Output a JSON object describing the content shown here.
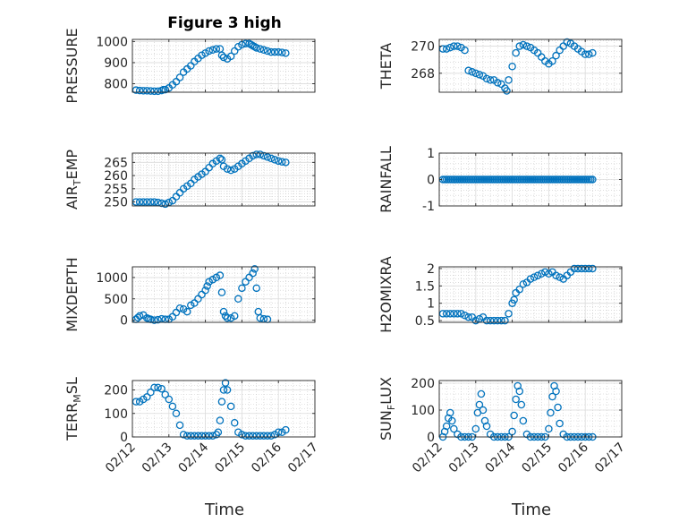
{
  "figure": {
    "title": "Figure 3 high",
    "xlabel": "Time",
    "marker_color": "#0072BD"
  },
  "chart_data": [
    {
      "type": "scatter",
      "ylabel": "PRESSURE",
      "yticks": [
        "800",
        "900",
        "1000"
      ],
      "ylim": [
        760,
        1010
      ],
      "xticks": [],
      "xlim": [
        0,
        5
      ],
      "x": [
        0.1,
        0.2,
        0.3,
        0.4,
        0.5,
        0.6,
        0.7,
        0.8,
        0.85,
        0.9,
        1.0,
        1.1,
        1.2,
        1.3,
        1.4,
        1.5,
        1.6,
        1.7,
        1.8,
        1.9,
        2.0,
        2.1,
        2.2,
        2.3,
        2.4,
        2.45,
        2.5,
        2.6,
        2.7,
        2.8,
        2.9,
        3.0,
        3.1,
        3.2,
        3.25,
        3.3,
        3.35,
        3.4,
        3.5,
        3.6,
        3.7,
        3.8,
        3.9,
        4.0,
        4.1,
        4.2
      ],
      "values": [
        770,
        768,
        767,
        767,
        766,
        765,
        765,
        768,
        772,
        772,
        780,
        795,
        810,
        830,
        855,
        870,
        885,
        905,
        920,
        935,
        945,
        955,
        960,
        965,
        965,
        935,
        925,
        918,
        930,
        955,
        975,
        985,
        990,
        990,
        985,
        980,
        975,
        970,
        965,
        960,
        955,
        950,
        950,
        950,
        948,
        945
      ]
    },
    {
      "type": "scatter",
      "ylabel": "THETA",
      "yticks": [
        "268",
        "270"
      ],
      "ylim": [
        266.6,
        270.5
      ],
      "xticks": [],
      "xlim": [
        0,
        5
      ],
      "x": [
        0.1,
        0.2,
        0.3,
        0.4,
        0.5,
        0.6,
        0.7,
        0.8,
        0.9,
        1.0,
        1.1,
        1.2,
        1.3,
        1.4,
        1.5,
        1.6,
        1.7,
        1.8,
        1.85,
        1.9,
        2.0,
        2.1,
        2.2,
        2.3,
        2.4,
        2.5,
        2.6,
        2.7,
        2.8,
        2.9,
        3.0,
        3.1,
        3.2,
        3.3,
        3.4,
        3.5,
        3.6,
        3.7,
        3.8,
        3.9,
        4.0,
        4.1,
        4.2
      ],
      "values": [
        269.8,
        269.8,
        269.9,
        270.0,
        270.0,
        269.9,
        269.7,
        268.2,
        268.1,
        268.0,
        267.9,
        267.8,
        267.6,
        267.5,
        267.5,
        267.3,
        267.2,
        266.9,
        266.7,
        267.5,
        268.5,
        269.5,
        270.0,
        270.1,
        270.0,
        269.9,
        269.7,
        269.5,
        269.2,
        268.9,
        268.7,
        268.9,
        269.3,
        269.7,
        270.0,
        270.3,
        270.2,
        270.0,
        269.8,
        269.6,
        269.4,
        269.4,
        269.5
      ]
    },
    {
      "type": "scatter",
      "ylabel": "AIR_TEMP",
      "yticks": [
        "250",
        "255",
        "260",
        "265"
      ],
      "ylim": [
        248.5,
        268.5
      ],
      "xticks": [],
      "xlim": [
        0,
        5
      ],
      "x": [
        0.1,
        0.2,
        0.3,
        0.4,
        0.5,
        0.6,
        0.7,
        0.8,
        0.9,
        1.0,
        1.1,
        1.2,
        1.3,
        1.4,
        1.5,
        1.6,
        1.7,
        1.8,
        1.9,
        2.0,
        2.1,
        2.2,
        2.3,
        2.4,
        2.45,
        2.5,
        2.6,
        2.7,
        2.8,
        2.9,
        3.0,
        3.1,
        3.2,
        3.3,
        3.4,
        3.5,
        3.6,
        3.7,
        3.8,
        3.9,
        4.0,
        4.1,
        4.2
      ],
      "values": [
        250.0,
        250.0,
        250.0,
        250.0,
        250.0,
        250.0,
        249.8,
        249.5,
        249.2,
        249.8,
        250.5,
        252.0,
        253.5,
        255.0,
        256.0,
        257.0,
        258.5,
        259.5,
        260.5,
        261.5,
        263.0,
        264.5,
        265.5,
        266.5,
        266.0,
        263.5,
        262.5,
        262.0,
        262.5,
        263.5,
        264.5,
        265.5,
        266.5,
        267.5,
        268.0,
        268.0,
        267.5,
        267.0,
        266.5,
        266.0,
        265.5,
        265.2,
        265.0
      ]
    },
    {
      "type": "scatter",
      "ylabel": "RAINFALL",
      "yticks": [
        "-1",
        "0",
        "1"
      ],
      "ylim": [
        -1,
        1
      ],
      "xticks": [],
      "xlim": [
        0,
        5
      ],
      "x_start": 0.1,
      "x_end": 4.2,
      "constant_value": 0
    },
    {
      "type": "scatter",
      "ylabel": "MIXDEPTH",
      "yticks": [
        "0",
        "500",
        "1000"
      ],
      "ylim": [
        -50,
        1250
      ],
      "xticks": [],
      "xlim": [
        0,
        5
      ],
      "x": [
        0.1,
        0.15,
        0.2,
        0.3,
        0.4,
        0.45,
        0.5,
        0.6,
        0.7,
        0.8,
        0.9,
        1.0,
        1.1,
        1.2,
        1.3,
        1.4,
        1.5,
        1.6,
        1.7,
        1.8,
        1.9,
        2.0,
        2.05,
        2.1,
        2.2,
        2.3,
        2.4,
        2.45,
        2.5,
        2.55,
        2.6,
        2.7,
        2.8,
        2.9,
        3.0,
        3.1,
        3.2,
        3.3,
        3.35,
        3.4,
        3.45,
        3.5,
        3.6,
        3.7
      ],
      "values": [
        20,
        60,
        100,
        120,
        50,
        30,
        20,
        0,
        10,
        30,
        20,
        20,
        80,
        180,
        280,
        260,
        200,
        350,
        400,
        500,
        600,
        700,
        800,
        900,
        950,
        1000,
        1050,
        650,
        200,
        100,
        50,
        50,
        100,
        500,
        750,
        900,
        1000,
        1100,
        1200,
        750,
        200,
        50,
        30,
        20
      ]
    },
    {
      "type": "scatter",
      "ylabel": "H2OMIXRA",
      "yticks": [
        "0.5",
        "1",
        "1.5",
        "2"
      ],
      "ylim": [
        0.45,
        2.05
      ],
      "xticks": [],
      "xlim": [
        0,
        5
      ],
      "x": [
        0.1,
        0.2,
        0.3,
        0.4,
        0.5,
        0.6,
        0.7,
        0.8,
        0.9,
        1.0,
        1.1,
        1.2,
        1.3,
        1.4,
        1.5,
        1.6,
        1.7,
        1.8,
        1.9,
        2.0,
        2.05,
        2.1,
        2.2,
        2.3,
        2.4,
        2.5,
        2.6,
        2.7,
        2.8,
        2.9,
        3.0,
        3.1,
        3.2,
        3.3,
        3.4,
        3.5,
        3.6,
        3.7,
        3.8,
        3.9,
        4.0,
        4.1,
        4.2
      ],
      "values": [
        0.7,
        0.7,
        0.7,
        0.7,
        0.7,
        0.7,
        0.65,
        0.6,
        0.6,
        0.5,
        0.55,
        0.6,
        0.5,
        0.5,
        0.5,
        0.5,
        0.5,
        0.5,
        0.7,
        1.0,
        1.1,
        1.3,
        1.4,
        1.55,
        1.6,
        1.7,
        1.75,
        1.8,
        1.85,
        1.9,
        1.85,
        1.9,
        1.8,
        1.75,
        1.7,
        1.8,
        1.9,
        2.0,
        2.0,
        2.0,
        2.0,
        2.0,
        2.0
      ]
    },
    {
      "type": "scatter",
      "ylabel": "TERR_MSL",
      "yticks": [
        "0",
        "100",
        "200"
      ],
      "ylim": [
        0,
        240
      ],
      "xticks": [
        "02/12",
        "02/13",
        "02/14",
        "02/15",
        "02/16",
        "02/17"
      ],
      "xlim": [
        0,
        5
      ],
      "x": [
        0.1,
        0.2,
        0.3,
        0.4,
        0.5,
        0.6,
        0.7,
        0.8,
        0.9,
        1.0,
        1.1,
        1.2,
        1.3,
        1.4,
        1.5,
        1.6,
        1.7,
        1.8,
        1.9,
        2.0,
        2.1,
        2.2,
        2.3,
        2.35,
        2.4,
        2.45,
        2.5,
        2.55,
        2.6,
        2.7,
        2.8,
        2.9,
        3.0,
        3.1,
        3.2,
        3.3,
        3.4,
        3.5,
        3.6,
        3.7,
        3.8,
        3.9,
        4.0,
        4.1,
        4.2
      ],
      "values": [
        150,
        150,
        160,
        170,
        190,
        210,
        210,
        205,
        180,
        160,
        130,
        100,
        50,
        10,
        5,
        5,
        5,
        5,
        5,
        5,
        5,
        5,
        10,
        20,
        70,
        150,
        200,
        230,
        200,
        130,
        60,
        20,
        10,
        5,
        5,
        5,
        5,
        5,
        5,
        5,
        5,
        10,
        20,
        20,
        30
      ]
    },
    {
      "type": "scatter",
      "ylabel": "SUN_FLUX",
      "yticks": [
        "0",
        "100",
        "200"
      ],
      "ylim": [
        0,
        210
      ],
      "xticks": [
        "02/12",
        "02/13",
        "02/14",
        "02/15",
        "02/16",
        "02/17"
      ],
      "xlim": [
        0,
        5
      ],
      "x": [
        0.1,
        0.15,
        0.2,
        0.25,
        0.3,
        0.35,
        0.4,
        0.5,
        0.6,
        0.7,
        0.8,
        0.9,
        1.0,
        1.05,
        1.1,
        1.15,
        1.2,
        1.25,
        1.3,
        1.4,
        1.5,
        1.6,
        1.7,
        1.8,
        1.9,
        2.0,
        2.05,
        2.1,
        2.15,
        2.2,
        2.25,
        2.3,
        2.4,
        2.5,
        2.6,
        2.7,
        2.8,
        2.9,
        3.0,
        3.05,
        3.1,
        3.15,
        3.2,
        3.25,
        3.3,
        3.4,
        3.5,
        3.6,
        3.7,
        3.8,
        3.9,
        4.0,
        4.1,
        4.2
      ],
      "values": [
        0,
        20,
        40,
        70,
        90,
        60,
        30,
        10,
        0,
        0,
        0,
        0,
        30,
        90,
        120,
        160,
        100,
        60,
        40,
        10,
        0,
        0,
        0,
        0,
        0,
        20,
        80,
        140,
        190,
        170,
        120,
        60,
        10,
        0,
        0,
        0,
        0,
        0,
        30,
        90,
        150,
        190,
        170,
        110,
        50,
        10,
        0,
        0,
        0,
        0,
        0,
        0,
        0,
        0
      ]
    }
  ]
}
